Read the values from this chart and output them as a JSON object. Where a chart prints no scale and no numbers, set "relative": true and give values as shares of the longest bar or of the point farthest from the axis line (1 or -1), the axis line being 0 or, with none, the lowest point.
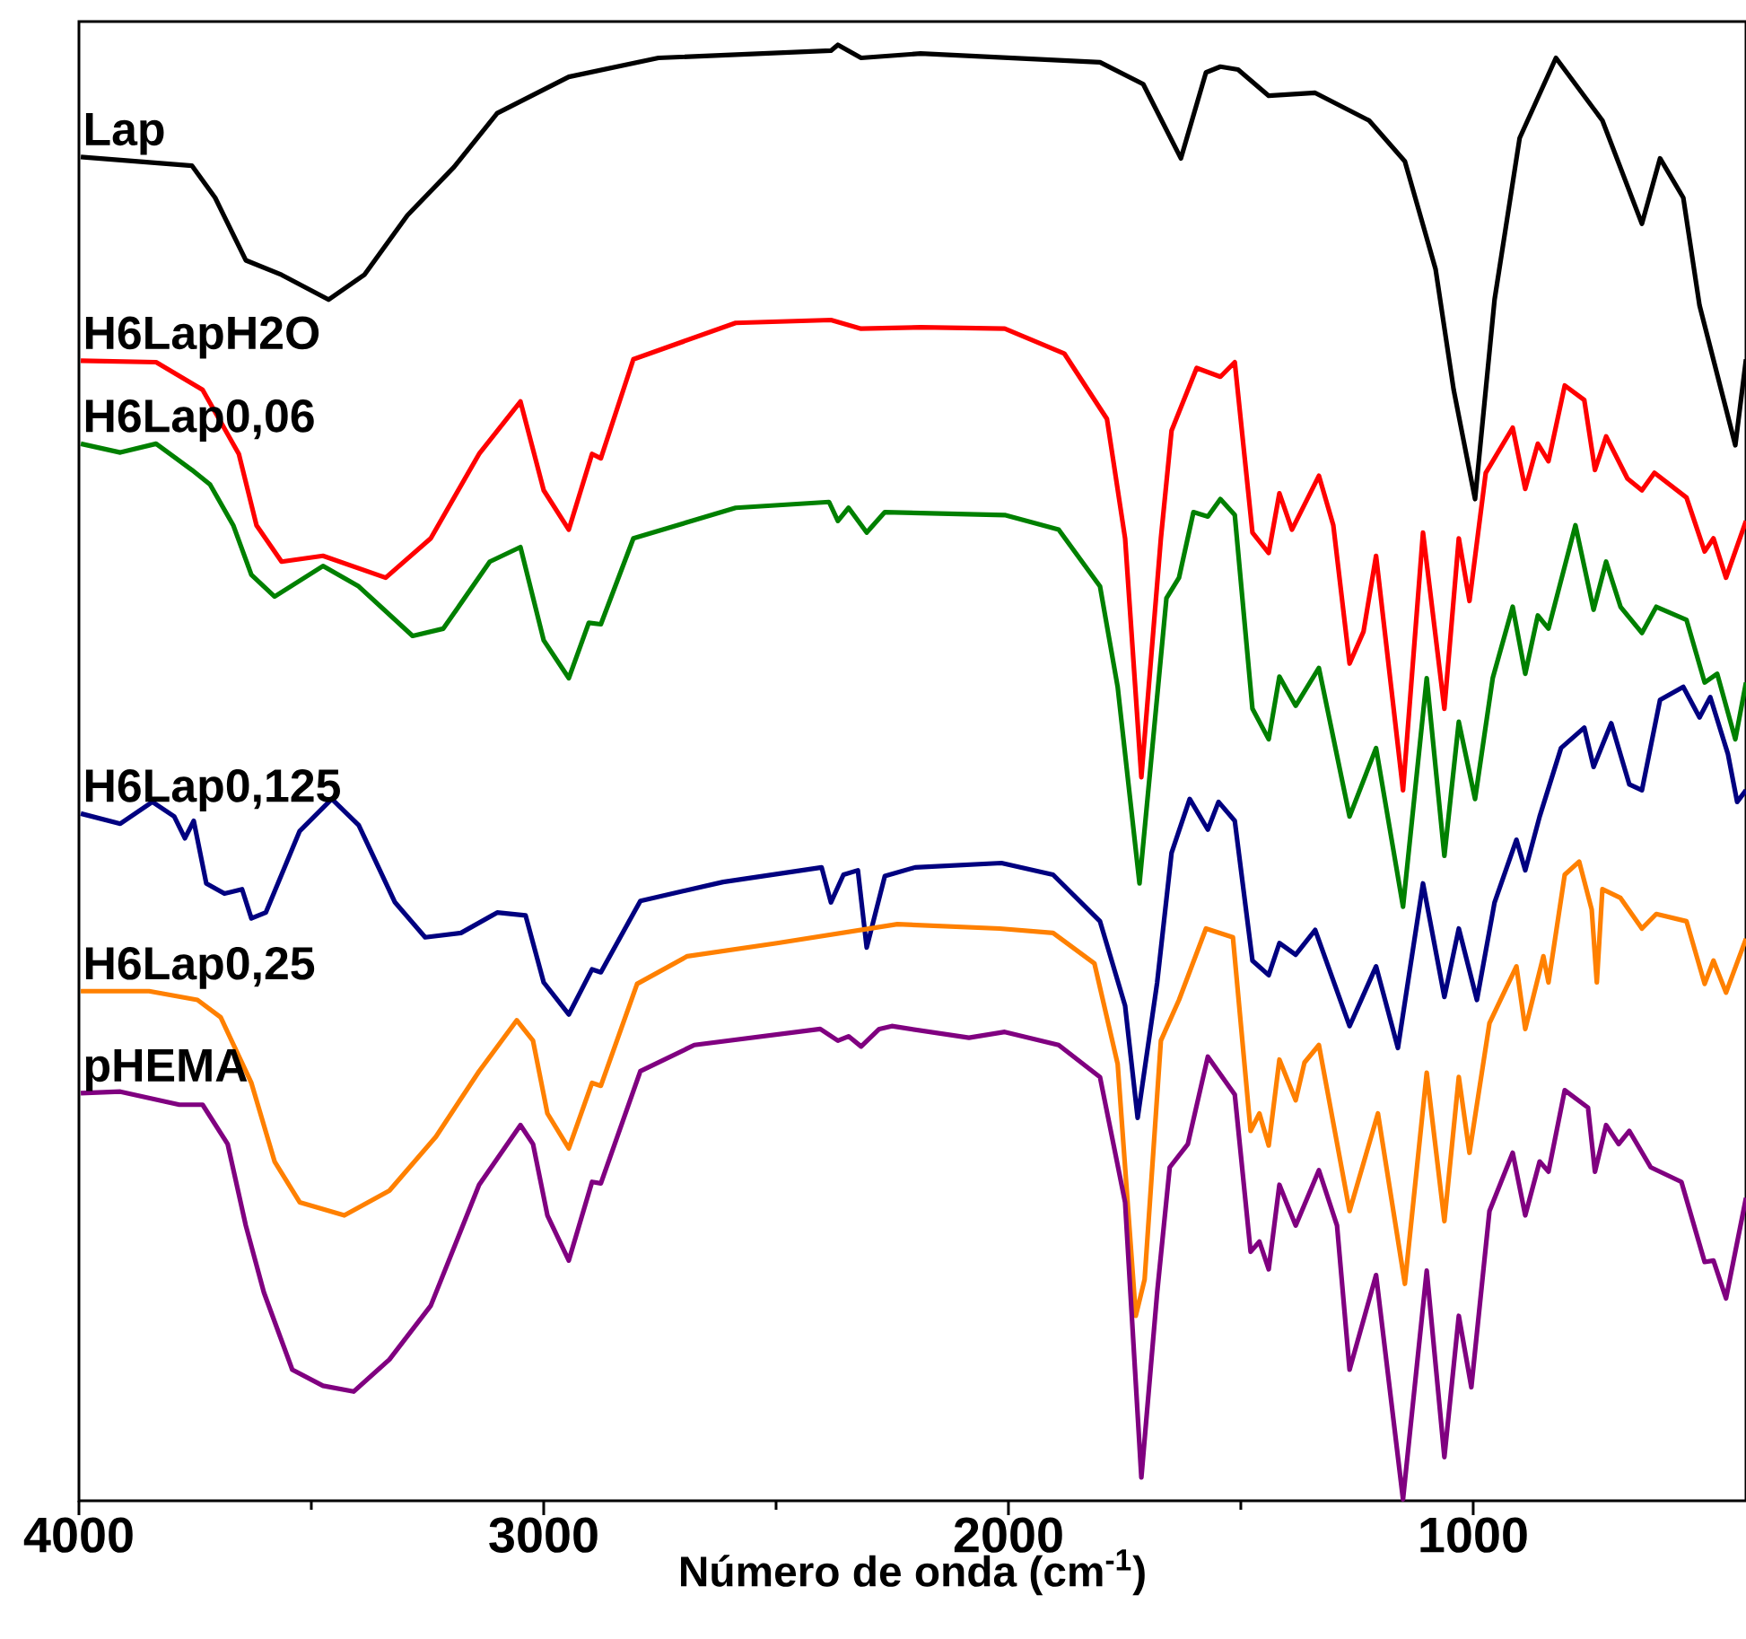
{
  "chart_data": {
    "type": "line",
    "xlabel": "Número de onda (cm$^{-1}$)",
    "xlim": [
      4000,
      413
    ],
    "xticks": [
      4000,
      3000,
      2000,
      1000
    ],
    "relative": true,
    "tick_labels": "x",
    "legend": false,
    "grid": false,
    "marker": "none",
    "line_style": "solid",
    "series": [
      {
        "name": "Lap",
        "color": "#000000",
        "x": [
          3996,
          3757,
          3707,
          3641,
          3564,
          3463,
          3386,
          3293,
          3193,
          3100,
          2946,
          2753,
          2382,
          2367,
          2317,
          2189,
          1803,
          1710,
          1629,
          1575,
          1544,
          1506,
          1440,
          1340,
          1224,
          1147,
          1081,
          1042,
          996,
          954,
          900,
          822,
          722,
          637,
          598,
          548,
          513,
          436,
          413
        ],
        "values": [
          0.923,
          0.917,
          0.895,
          0.852,
          0.842,
          0.825,
          0.842,
          0.883,
          0.916,
          0.953,
          0.978,
          0.991,
          0.996,
          1.0,
          0.991,
          0.994,
          0.988,
          0.973,
          0.922,
          0.981,
          0.985,
          0.983,
          0.965,
          0.967,
          0.948,
          0.92,
          0.846,
          0.763,
          0.688,
          0.825,
          0.936,
          0.991,
          0.948,
          0.877,
          0.922,
          0.895,
          0.821,
          0.725,
          0.784
        ]
      },
      {
        "name": "H6LapH2O",
        "color": "#ff0000",
        "x": [
          3996,
          3834,
          3734,
          3656,
          3618,
          3564,
          3475,
          3340,
          3243,
          3139,
          3050,
          3000,
          2946,
          2896,
          2877,
          2807,
          2587,
          2382,
          2317,
          2189,
          2008,
          1880,
          1788,
          1749,
          1714,
          1672,
          1649,
          1595,
          1544,
          1513,
          1475,
          1440,
          1417,
          1390,
          1332,
          1301,
          1266,
          1236,
          1209,
          1151,
          1108,
          1062,
          1031,
          1008,
          973,
          915,
          888,
          861,
          838,
          803,
          761,
          738,
          714,
          668,
          637,
          610,
          541,
          502,
          483,
          456,
          413
        ],
        "values": [
          0.783,
          0.782,
          0.763,
          0.719,
          0.67,
          0.645,
          0.649,
          0.634,
          0.661,
          0.719,
          0.755,
          0.694,
          0.667,
          0.719,
          0.716,
          0.784,
          0.809,
          0.811,
          0.805,
          0.806,
          0.805,
          0.788,
          0.743,
          0.661,
          0.497,
          0.661,
          0.735,
          0.778,
          0.772,
          0.782,
          0.665,
          0.651,
          0.692,
          0.667,
          0.704,
          0.67,
          0.575,
          0.597,
          0.649,
          0.488,
          0.665,
          0.544,
          0.661,
          0.618,
          0.706,
          0.737,
          0.695,
          0.726,
          0.714,
          0.766,
          0.756,
          0.708,
          0.731,
          0.702,
          0.694,
          0.706,
          0.689,
          0.652,
          0.661,
          0.634,
          0.673
        ]
      },
      {
        "name": "H6Lap0,06",
        "color": "#008000",
        "x": [
          3996,
          3911,
          3834,
          3757,
          3718,
          3668,
          3629,
          3579,
          3475,
          3398,
          3282,
          3216,
          3116,
          3050,
          3000,
          2946,
          2903,
          2877,
          2807,
          2587,
          2386,
          2367,
          2344,
          2305,
          2266,
          2008,
          1892,
          1803,
          1765,
          1718,
          1660,
          1633,
          1602,
          1571,
          1544,
          1513,
          1475,
          1440,
          1417,
          1382,
          1332,
          1266,
          1209,
          1151,
          1100,
          1062,
          1031,
          996,
          958,
          915,
          888,
          861,
          838,
          780,
          741,
          714,
          683,
          637,
          606,
          541,
          502,
          475,
          436,
          413
        ],
        "values": [
          0.726,
          0.72,
          0.726,
          0.708,
          0.698,
          0.67,
          0.636,
          0.621,
          0.642,
          0.628,
          0.594,
          0.599,
          0.645,
          0.655,
          0.591,
          0.565,
          0.603,
          0.602,
          0.661,
          0.682,
          0.686,
          0.673,
          0.682,
          0.665,
          0.679,
          0.677,
          0.667,
          0.628,
          0.559,
          0.424,
          0.62,
          0.634,
          0.679,
          0.676,
          0.688,
          0.677,
          0.544,
          0.523,
          0.566,
          0.546,
          0.572,
          0.47,
          0.517,
          0.408,
          0.565,
          0.443,
          0.535,
          0.482,
          0.565,
          0.614,
          0.568,
          0.608,
          0.599,
          0.67,
          0.612,
          0.645,
          0.614,
          0.596,
          0.614,
          0.605,
          0.562,
          0.568,
          0.523,
          0.562
        ]
      },
      {
        "name": "H6Lap0,125",
        "color": "#000080",
        "x": [
          3996,
          3911,
          3842,
          3795,
          3772,
          3753,
          3726,
          3687,
          3649,
          3629,
          3598,
          3525,
          3456,
          3398,
          3320,
          3255,
          3178,
          3100,
          3039,
          3000,
          2946,
          2896,
          2877,
          2792,
          2614,
          2402,
          2382,
          2355,
          2324,
          2305,
          2266,
          2201,
          2015,
          1904,
          1803,
          1749,
          1722,
          1680,
          1649,
          1610,
          1571,
          1548,
          1513,
          1475,
          1440,
          1417,
          1382,
          1340,
          1266,
          1209,
          1162,
          1108,
          1062,
          1031,
          992,
          954,
          907,
          888,
          857,
          811,
          761,
          741,
          703,
          664,
          637,
          598,
          548,
          513,
          490,
          452,
          432,
          413
        ],
        "values": [
          0.472,
          0.465,
          0.48,
          0.47,
          0.455,
          0.467,
          0.424,
          0.417,
          0.42,
          0.4,
          0.404,
          0.46,
          0.482,
          0.464,
          0.411,
          0.387,
          0.39,
          0.404,
          0.402,
          0.356,
          0.334,
          0.365,
          0.363,
          0.412,
          0.425,
          0.435,
          0.411,
          0.43,
          0.433,
          0.38,
          0.429,
          0.435,
          0.438,
          0.43,
          0.398,
          0.34,
          0.263,
          0.356,
          0.445,
          0.482,
          0.461,
          0.48,
          0.467,
          0.371,
          0.361,
          0.383,
          0.375,
          0.392,
          0.326,
          0.367,
          0.311,
          0.424,
          0.346,
          0.393,
          0.344,
          0.411,
          0.454,
          0.433,
          0.47,
          0.517,
          0.531,
          0.504,
          0.534,
          0.492,
          0.488,
          0.55,
          0.559,
          0.538,
          0.552,
          0.513,
          0.48,
          0.488
        ]
      },
      {
        "name": "H6Lap0,25",
        "color": "#ff8000",
        "x": [
          3996,
          3849,
          3745,
          3695,
          3629,
          3579,
          3525,
          3429,
          3332,
          3232,
          3139,
          3058,
          3023,
          2992,
          2946,
          2896,
          2877,
          2799,
          2691,
          2498,
          2239,
          2019,
          1904,
          1815,
          1765,
          1726,
          1707,
          1672,
          1633,
          1575,
          1517,
          1479,
          1460,
          1440,
          1417,
          1382,
          1363,
          1332,
          1266,
          1205,
          1147,
          1100,
          1062,
          1031,
          1008,
          965,
          907,
          888,
          849,
          838,
          803,
          772,
          745,
          734,
          722,
          683,
          637,
          606,
          541,
          502,
          483,
          456,
          413
        ],
        "values": [
          0.35,
          0.35,
          0.344,
          0.332,
          0.287,
          0.233,
          0.205,
          0.196,
          0.213,
          0.25,
          0.295,
          0.33,
          0.316,
          0.266,
          0.242,
          0.287,
          0.285,
          0.355,
          0.374,
          0.383,
          0.396,
          0.393,
          0.39,
          0.369,
          0.3,
          0.127,
          0.152,
          0.316,
          0.344,
          0.393,
          0.387,
          0.254,
          0.266,
          0.244,
          0.303,
          0.275,
          0.301,
          0.313,
          0.199,
          0.266,
          0.149,
          0.294,
          0.192,
          0.291,
          0.239,
          0.328,
          0.367,
          0.324,
          0.374,
          0.356,
          0.43,
          0.439,
          0.406,
          0.356,
          0.42,
          0.414,
          0.393,
          0.403,
          0.398,
          0.355,
          0.371,
          0.349,
          0.386
        ]
      },
      {
        "name": "pHEMA",
        "color": "#800080",
        "x": [
          3996,
          3911,
          3784,
          3734,
          3680,
          3641,
          3602,
          3541,
          3475,
          3409,
          3332,
          3243,
          3139,
          3050,
          3023,
          2992,
          2946,
          2896,
          2877,
          2792,
          2676,
          2405,
          2367,
          2344,
          2317,
          2278,
          2251,
          2085,
          2008,
          1892,
          1803,
          1749,
          1714,
          1680,
          1653,
          1614,
          1571,
          1513,
          1479,
          1460,
          1440,
          1417,
          1382,
          1332,
          1293,
          1266,
          1209,
          1151,
          1100,
          1062,
          1031,
          1004,
          965,
          915,
          888,
          857,
          838,
          803,
          753,
          738,
          714,
          687,
          664,
          618,
          552,
          502,
          483,
          456,
          413
        ],
        "values": [
          0.28,
          0.281,
          0.272,
          0.272,
          0.245,
          0.189,
          0.143,
          0.09,
          0.079,
          0.075,
          0.097,
          0.134,
          0.217,
          0.258,
          0.245,
          0.196,
          0.165,
          0.219,
          0.218,
          0.295,
          0.313,
          0.324,
          0.316,
          0.319,
          0.312,
          0.324,
          0.326,
          0.318,
          0.322,
          0.313,
          0.291,
          0.205,
          0.016,
          0.143,
          0.229,
          0.245,
          0.305,
          0.279,
          0.171,
          0.178,
          0.159,
          0.217,
          0.189,
          0.227,
          0.189,
          0.09,
          0.155,
          0.001,
          0.158,
          0.03,
          0.127,
          0.078,
          0.199,
          0.239,
          0.196,
          0.233,
          0.226,
          0.282,
          0.27,
          0.226,
          0.258,
          0.245,
          0.254,
          0.229,
          0.219,
          0.164,
          0.165,
          0.139,
          0.208
        ]
      }
    ]
  }
}
